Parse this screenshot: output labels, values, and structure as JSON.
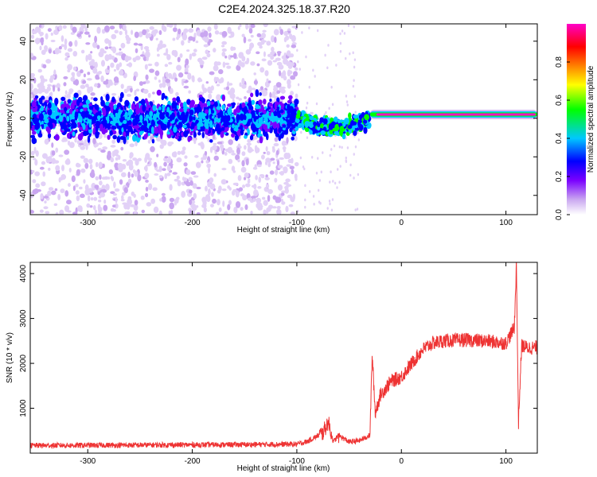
{
  "figure_title": "C2E4.2024.325.18.37.R20",
  "chart_data": [
    {
      "type": "heatmap",
      "title": "C2E4.2024.325.18.37.R20",
      "xlabel": "Height of straight line (km)",
      "ylabel": "Frequency (Hz)",
      "xlim": [
        -355,
        130
      ],
      "ylim": [
        -50,
        49
      ],
      "xticks": [
        -300,
        -200,
        -100,
        0,
        100
      ],
      "yticks": [
        -40,
        -20,
        0,
        20,
        40
      ],
      "colorbar": {
        "label": "Normalized spectral amplitude",
        "range": [
          0,
          1
        ],
        "ticks": [
          "0.0",
          "0.2",
          "0.4",
          "0.6",
          "0.8"
        ],
        "tick_values": [
          0.0,
          0.2,
          0.4,
          0.6,
          0.8
        ],
        "colors": [
          "#ffffff",
          "#c9a6f0",
          "#7a00ff",
          "#0000ff",
          "#00c8ff",
          "#00ff00",
          "#ffff00",
          "#ff8000",
          "#ff0000",
          "#ff00c8"
        ]
      },
      "description_points": {
        "noise_region_x": [
          -355,
          -100
        ],
        "noise_band_center_hz": 0,
        "noise_band_halfwidth_hz": 8,
        "transition_x": [
          -100,
          -30
        ],
        "transition_center_hz": [
          0,
          -5
        ],
        "signal_x": [
          -30,
          130
        ],
        "signal_center_hz": 2,
        "signal_amplitude": 0.95
      }
    },
    {
      "type": "line",
      "xlabel": "Height of straight line (km)",
      "ylabel": "SNR (10 * v/v)",
      "xlim": [
        -355,
        130
      ],
      "ylim": [
        0,
        4250
      ],
      "xticks": [
        -300,
        -200,
        -100,
        0,
        100
      ],
      "yticks": [
        1000,
        2000,
        3000,
        4000
      ],
      "line_color": "#ee3333",
      "series": [
        {
          "name": "SNR",
          "x": [
            -355,
            -300,
            -250,
            -200,
            -150,
            -100,
            -90,
            -75,
            -70,
            -65,
            -60,
            -50,
            -40,
            -30,
            -28,
            -25,
            -20,
            -10,
            0,
            10,
            20,
            30,
            40,
            60,
            80,
            100,
            108,
            110,
            112,
            115,
            120,
            130
          ],
          "y": [
            170,
            175,
            180,
            185,
            190,
            200,
            260,
            450,
            700,
            250,
            400,
            250,
            280,
            400,
            2200,
            900,
            1300,
            1600,
            1700,
            2000,
            2300,
            2450,
            2500,
            2520,
            2500,
            2450,
            2800,
            4200,
            700,
            2400,
            2350,
            2350
          ]
        }
      ]
    }
  ]
}
